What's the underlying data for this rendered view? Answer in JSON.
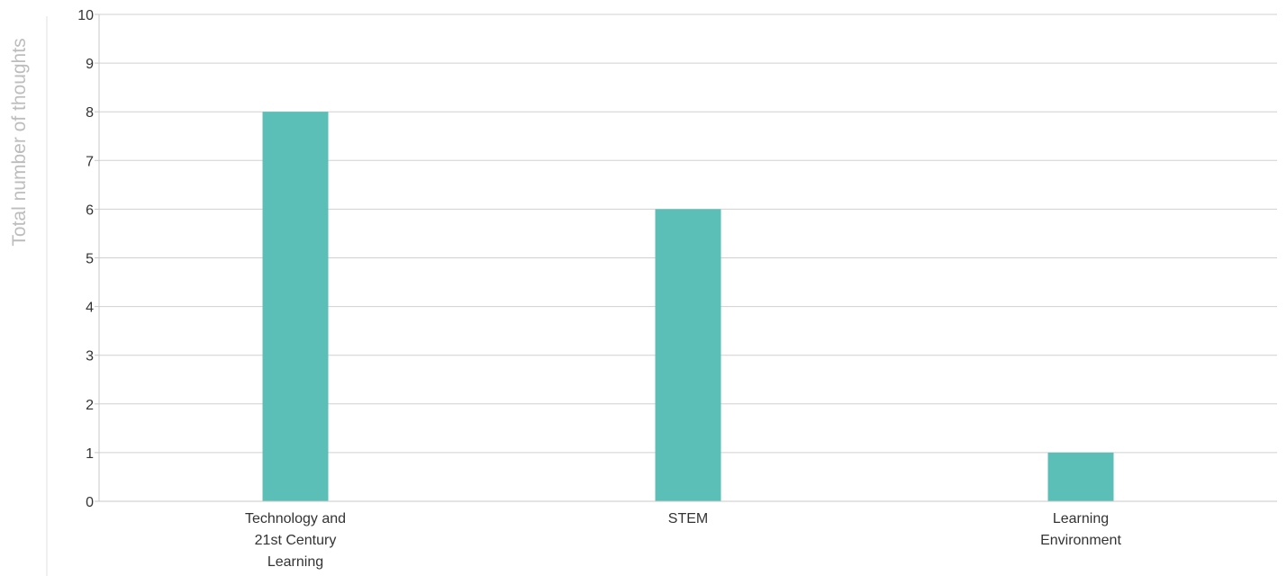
{
  "chart_data": {
    "type": "bar",
    "title": "",
    "xlabel": "",
    "ylabel": "Total number of thoughts",
    "ylim": [
      0,
      10
    ],
    "yticks": [
      0,
      1,
      2,
      3,
      4,
      5,
      6,
      7,
      8,
      9,
      10
    ],
    "grid": true,
    "legend": "none",
    "categories": [
      [
        "Technology and",
        "21st Century",
        "Learning"
      ],
      [
        "STEM"
      ],
      [
        "Learning",
        "Environment"
      ]
    ],
    "values": [
      8,
      6,
      1
    ],
    "bar_color": "#5bbfb8"
  }
}
